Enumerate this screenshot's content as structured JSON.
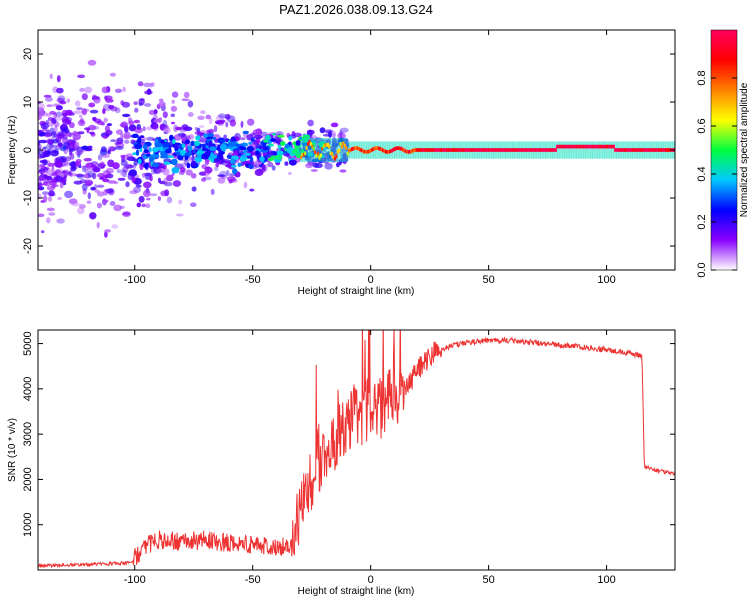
{
  "title": "PAZ1.2026.038.09.13.G24",
  "chart_data": [
    {
      "type": "heatmap",
      "xlabel": "Height of straight line (km)",
      "ylabel": "Frequency (Hz)",
      "xlim": [
        -141,
        129
      ],
      "ylim": [
        -25,
        25
      ],
      "xticks": [
        -100,
        -50,
        0,
        50,
        100
      ],
      "yticks": [
        -20,
        -10,
        0,
        10,
        20
      ],
      "xtick_labels": [
        "-100",
        "-50",
        "0",
        "50",
        "100"
      ],
      "ytick_labels": [
        "-20",
        "-10",
        "0",
        "10",
        "20"
      ],
      "colorbar": {
        "label": "Normalized spectral amplitude",
        "range": [
          0,
          1
        ],
        "ticks": [
          0.0,
          0.2,
          0.4,
          0.6,
          0.8
        ],
        "tick_labels": [
          "0.0",
          "0.2",
          "0.4",
          "0.6",
          "0.8"
        ],
        "colormap": [
          "#ffffff",
          "#8a00ff",
          "#0000ff",
          "#00c8ff",
          "#00ff40",
          "#ffff00",
          "#ff8000",
          "#ff0000",
          "#ff0060"
        ]
      },
      "features": {
        "carrier_line_frequency": 0,
        "noise_region_end_km": -20,
        "noise_spread_hz": 25
      }
    },
    {
      "type": "line",
      "xlabel": "Height of straight line (km)",
      "ylabel": "SNR (10 * v/v)",
      "xlim": [
        -141,
        129
      ],
      "ylim": [
        0,
        5300
      ],
      "xticks": [
        -100,
        -50,
        0,
        50,
        100
      ],
      "yticks": [
        1000,
        2000,
        3000,
        4000,
        5000
      ],
      "xtick_labels": [
        "-100",
        "-50",
        "0",
        "50",
        "100"
      ],
      "ytick_labels": [
        "1000",
        "2000",
        "3000",
        "4000",
        "5000"
      ],
      "series": [
        {
          "name": "SNR",
          "color": "#ee3333",
          "x": [
            -141,
            -120,
            -101,
            -96,
            -90,
            -80,
            -70,
            -60,
            -50,
            -40,
            -33,
            -30,
            -25,
            -20,
            -15,
            -10,
            -5,
            0,
            5,
            10,
            15,
            20,
            25,
            30,
            35,
            40,
            50,
            60,
            70,
            80,
            90,
            100,
            105,
            110,
            115,
            116,
            117,
            120,
            125,
            129
          ],
          "values": [
            80,
            110,
            150,
            450,
            600,
            560,
            600,
            540,
            500,
            480,
            420,
            1100,
            1800,
            2300,
            2700,
            3000,
            3200,
            3350,
            3400,
            3600,
            3950,
            4350,
            4650,
            4850,
            4950,
            5000,
            5050,
            5050,
            5000,
            4950,
            4900,
            4850,
            4800,
            4780,
            4700,
            2300,
            2250,
            2200,
            2150,
            2100
          ]
        }
      ]
    }
  ]
}
